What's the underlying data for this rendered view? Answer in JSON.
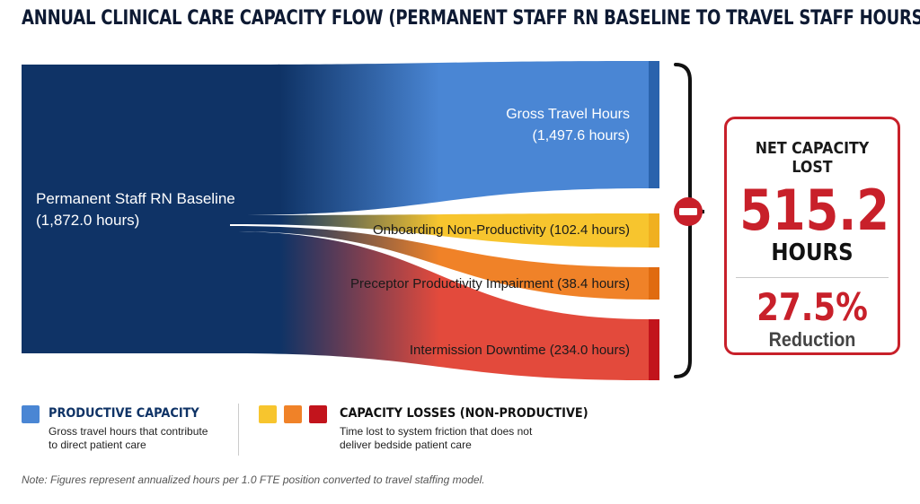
{
  "title": "ANNUAL CLINICAL CARE CAPACITY FLOW (PERMANENT STAFF RN BASELINE TO TRAVEL STAFF HOURS)",
  "source": {
    "name": "Permanent Staff RN Baseline",
    "hours_label": "(1,872.0 hours)",
    "hours": 1872.0,
    "color": "#0f3366"
  },
  "flows": [
    {
      "id": "gross",
      "label": "Gross Travel Hours",
      "hours_label": "(1,497.6 hours)",
      "hours": 1497.6,
      "color": "#4a86d4",
      "dark": "#2a63ad",
      "text_color": "#ffffff"
    },
    {
      "id": "onboarding",
      "label": "Onboarding Non-Productivity (102.4 hours)",
      "hours": 102.4,
      "color": "#f7c52e",
      "dark": "#f0b020",
      "text_color": "#1a1a1a"
    },
    {
      "id": "preceptor",
      "label": "Preceptor Productivity Impairment (38.4 hours)",
      "hours": 38.4,
      "color": "#f08228",
      "dark": "#e06b10",
      "text_color": "#1a1a1a"
    },
    {
      "id": "intermission",
      "label": "Intermission Downtime (234.0 hours)",
      "hours": 234.0,
      "color": "#e34a3c",
      "dark": "#c2141c",
      "text_color": "#1a1a1a"
    }
  ],
  "net": {
    "title": "NET CAPACITY LOST",
    "value": "515.2",
    "unit": "HOURS",
    "percent": "27.5%",
    "percent_label": "Reduction",
    "color": "#c8202a"
  },
  "legend": {
    "productive": {
      "title": "PRODUCTIVE CAPACITY",
      "desc_line1": "Gross travel hours that contribute",
      "desc_line2": "to direct patient care",
      "color": "#4a86d4",
      "title_color": "#0f3366"
    },
    "losses": {
      "title": "CAPACITY LOSSES (NON-PRODUCTIVE)",
      "desc_line1": "Time lost to system friction that does not",
      "desc_line2": "deliver bedside patient care",
      "colors": [
        "#f7c52e",
        "#f08228",
        "#c2141c"
      ],
      "title_color": "#111111"
    }
  },
  "note": "Note: Figures represent annualized hours per 1.0 FTE position converted to travel staffing model."
}
